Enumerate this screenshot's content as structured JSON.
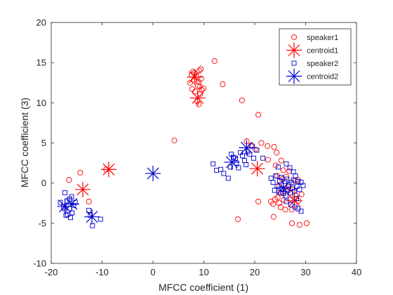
{
  "chart_data": {
    "type": "scatter",
    "title": "",
    "xlabel": "MFCC coefficient (1)",
    "ylabel": "MFCC coefficient (3)",
    "xlim": [
      -20,
      40
    ],
    "ylim": [
      -10,
      20
    ],
    "xticks": [
      -20,
      -10,
      0,
      10,
      20,
      30,
      40
    ],
    "yticks": [
      -10,
      -5,
      0,
      5,
      10,
      15,
      20
    ],
    "grid": false,
    "legend_position": "top-right",
    "series": [
      {
        "name": "speaker1",
        "marker": "circle",
        "color": "#ff0000",
        "points": [
          [
            -16.5,
            0.4
          ],
          [
            -14.3,
            1.3
          ],
          [
            -12.6,
            -2.3
          ],
          [
            -9.2,
            1.7
          ],
          [
            4.2,
            5.3
          ],
          [
            7.3,
            12.5
          ],
          [
            7.6,
            13.5
          ],
          [
            7.9,
            13.9
          ],
          [
            8.0,
            12.8
          ],
          [
            8.3,
            11.4
          ],
          [
            8.5,
            13.3
          ],
          [
            8.8,
            12.1
          ],
          [
            9.1,
            14.0
          ],
          [
            9.0,
            12.6
          ],
          [
            9.5,
            13.0
          ],
          [
            7.7,
            11.7
          ],
          [
            9.2,
            12.0
          ],
          [
            9.3,
            11.1
          ],
          [
            8.7,
            10.2
          ],
          [
            9.0,
            9.8
          ],
          [
            9.6,
            11.6
          ],
          [
            9.9,
            11.8
          ],
          [
            8.1,
            13.7
          ],
          [
            9.4,
            14.2
          ],
          [
            12.1,
            15.2
          ],
          [
            13.7,
            12.3
          ],
          [
            17.5,
            10.3
          ],
          [
            20.7,
            8.5
          ],
          [
            16.7,
            -4.5
          ],
          [
            18.4,
            5.2
          ],
          [
            19.3,
            4.7
          ],
          [
            20.1,
            4.2
          ],
          [
            21.3,
            5.0
          ],
          [
            22.5,
            4.6
          ],
          [
            22.6,
            2.9
          ],
          [
            23.8,
            4.5
          ],
          [
            24.3,
            3.8
          ],
          [
            24.1,
            2.2
          ],
          [
            25.2,
            2.8
          ],
          [
            25.6,
            1.6
          ],
          [
            26.2,
            0.8
          ],
          [
            26.8,
            1.5
          ],
          [
            20.7,
            -2.3
          ],
          [
            23.2,
            -2.3
          ],
          [
            23.6,
            -2.6
          ],
          [
            24.0,
            -2.0
          ],
          [
            24.5,
            -1.8
          ],
          [
            24.8,
            -2.5
          ],
          [
            25.1,
            -3.0
          ],
          [
            25.7,
            -2.1
          ],
          [
            26.0,
            -3.3
          ],
          [
            23.7,
            -4.2
          ],
          [
            25.0,
            -1.2
          ],
          [
            26.3,
            -1.0
          ],
          [
            27.1,
            -2.0
          ],
          [
            27.3,
            -3.3
          ],
          [
            27.3,
            -5.0
          ],
          [
            28.8,
            -5.2
          ],
          [
            30.2,
            -5.0
          ],
          [
            24.4,
            0.9
          ],
          [
            24.8,
            -0.3
          ],
          [
            25.4,
            0.5
          ],
          [
            26.6,
            -0.5
          ],
          [
            27.5,
            -0.8
          ],
          [
            28.0,
            -1.5
          ],
          [
            28.6,
            -2.2
          ],
          [
            29.2,
            -1.4
          ],
          [
            27.9,
            0.3
          ],
          [
            28.5,
            0.4
          ]
        ]
      },
      {
        "name": "centroid1",
        "marker": "star",
        "color": "#ff0000",
        "points": [
          [
            -13.8,
            -0.8
          ],
          [
            -8.7,
            1.7
          ],
          [
            8.2,
            13.2
          ],
          [
            8.8,
            10.6
          ],
          [
            20.5,
            1.8
          ],
          [
            27.8,
            -2.2
          ]
        ]
      },
      {
        "name": "speaker2",
        "marker": "square",
        "color": "#0000cc",
        "points": [
          [
            -18.2,
            -2.4
          ],
          [
            -17.3,
            -1.2
          ],
          [
            -17.3,
            -3.2
          ],
          [
            -16.9,
            -2.2
          ],
          [
            -16.8,
            -3.9
          ],
          [
            -16.4,
            -2.0
          ],
          [
            -16.2,
            -4.3
          ],
          [
            -15.9,
            -3.7
          ],
          [
            -17.6,
            -3.0
          ],
          [
            -17.1,
            -4.0
          ],
          [
            -15.6,
            -2.8
          ],
          [
            -16.0,
            -1.7
          ],
          [
            -15.3,
            -2.4
          ],
          [
            -12.6,
            -3.4
          ],
          [
            -11.9,
            -5.3
          ],
          [
            -10.3,
            -4.5
          ],
          [
            -12.3,
            -4.0
          ],
          [
            11.8,
            2.4
          ],
          [
            12.5,
            1.6
          ],
          [
            13.3,
            1.7
          ],
          [
            13.9,
            1.2
          ],
          [
            14.8,
            0.6
          ],
          [
            15.2,
            2.0
          ],
          [
            15.4,
            3.6
          ],
          [
            15.8,
            3.2
          ],
          [
            16.2,
            3.1
          ],
          [
            16.4,
            2.5
          ],
          [
            16.8,
            1.9
          ],
          [
            17.2,
            3.8
          ],
          [
            17.6,
            3.4
          ],
          [
            18.0,
            2.8
          ],
          [
            18.3,
            2.3
          ],
          [
            18.6,
            3.9
          ],
          [
            19.0,
            3.6
          ],
          [
            19.5,
            4.6
          ],
          [
            19.8,
            3.1
          ],
          [
            20.4,
            4.1
          ],
          [
            21.6,
            3.1
          ],
          [
            23.2,
            0.6
          ],
          [
            23.6,
            0.1
          ],
          [
            23.9,
            -0.9
          ],
          [
            24.1,
            0.9
          ],
          [
            24.4,
            -0.4
          ],
          [
            24.7,
            -1.1
          ],
          [
            24.9,
            0.3
          ],
          [
            25.2,
            0.7
          ],
          [
            25.4,
            -0.7
          ],
          [
            25.6,
            -1.3
          ],
          [
            25.9,
            0.2
          ],
          [
            26.1,
            -1.6
          ],
          [
            26.3,
            0.5
          ],
          [
            26.5,
            -0.9
          ],
          [
            26.7,
            -0.2
          ],
          [
            27.0,
            -1.2
          ],
          [
            27.2,
            0.1
          ],
          [
            27.4,
            -0.6
          ],
          [
            27.6,
            0.4
          ],
          [
            27.8,
            -1.0
          ],
          [
            28.0,
            0.9
          ],
          [
            28.3,
            -0.4
          ],
          [
            28.5,
            0.2
          ],
          [
            28.8,
            -0.8
          ],
          [
            29.1,
            0.1
          ],
          [
            29.5,
            -0.3
          ],
          [
            26.2,
            2.4
          ],
          [
            26.9,
            1.9
          ],
          [
            27.6,
            1.4
          ],
          [
            24.6,
            2.0
          ],
          [
            26.2,
            -2.3
          ],
          [
            27.1,
            -2.7
          ],
          [
            27.9,
            -3.0
          ],
          [
            28.5,
            -3.2
          ],
          [
            29.1,
            -3.5
          ],
          [
            28.2,
            -1.9
          ]
        ]
      },
      {
        "name": "centroid2",
        "marker": "star",
        "color": "#0000cc",
        "points": [
          [
            -17.3,
            -2.9
          ],
          [
            -16.0,
            -2.6
          ],
          [
            -12.0,
            -4.2
          ],
          [
            0.0,
            1.2
          ],
          [
            15.5,
            2.6
          ],
          [
            18.4,
            4.4
          ],
          [
            25.6,
            -0.6
          ]
        ]
      }
    ]
  }
}
